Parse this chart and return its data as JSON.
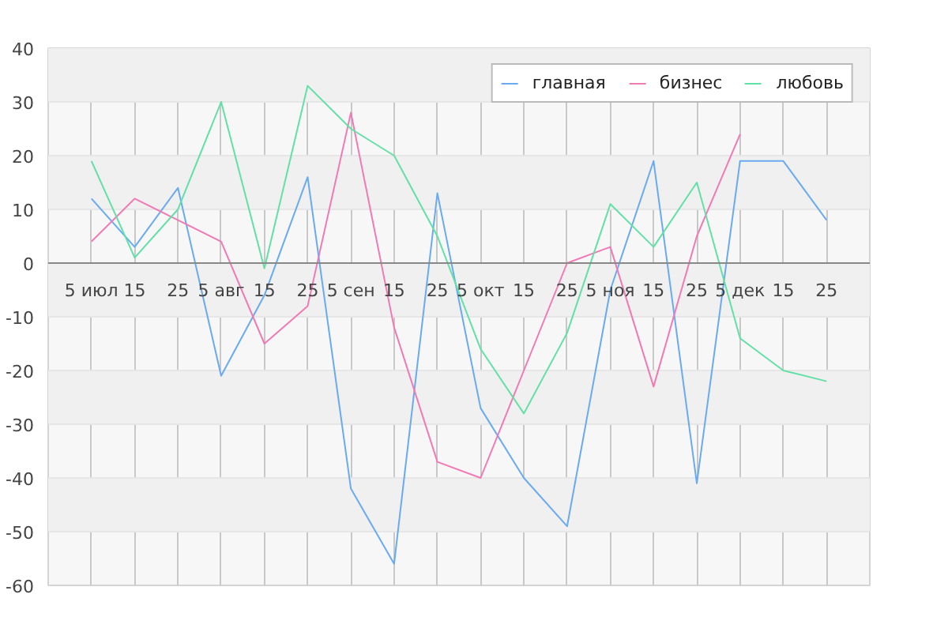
{
  "chart_data": {
    "type": "line",
    "categories": [
      "5 июл",
      "15",
      "25",
      "5 авг",
      "15",
      "25",
      "5 сен",
      "15",
      "25",
      "5 окт",
      "15",
      "25",
      "5 ноя",
      "15",
      "25",
      "5 дек",
      "15",
      "25"
    ],
    "series": [
      {
        "name": "главная",
        "color": "#6aaaf0",
        "values": [
          12,
          3,
          14,
          -21,
          -6,
          16,
          -42,
          -56,
          13,
          -27,
          -40,
          -49,
          -5,
          19,
          -41,
          19,
          19,
          8
        ]
      },
      {
        "name": "бизнес",
        "color": "#f07ab4",
        "values": [
          4,
          12,
          8,
          4,
          -15,
          -8,
          28,
          -12,
          -37,
          -40,
          -20,
          0,
          3,
          -23,
          5,
          24,
          null,
          null
        ]
      },
      {
        "name": "любовь",
        "color": "#62e0a6",
        "values": [
          19,
          1,
          10,
          30,
          -1,
          33,
          25,
          20,
          5,
          -16,
          -28,
          -13,
          11,
          3,
          15,
          -14,
          -20,
          -22
        ]
      }
    ],
    "ylim": [
      -60,
      40
    ],
    "yticks": [
      -60,
      -50,
      -40,
      -30,
      -20,
      -10,
      0,
      10,
      20,
      30,
      40
    ],
    "grid": true,
    "legend": "top right"
  }
}
